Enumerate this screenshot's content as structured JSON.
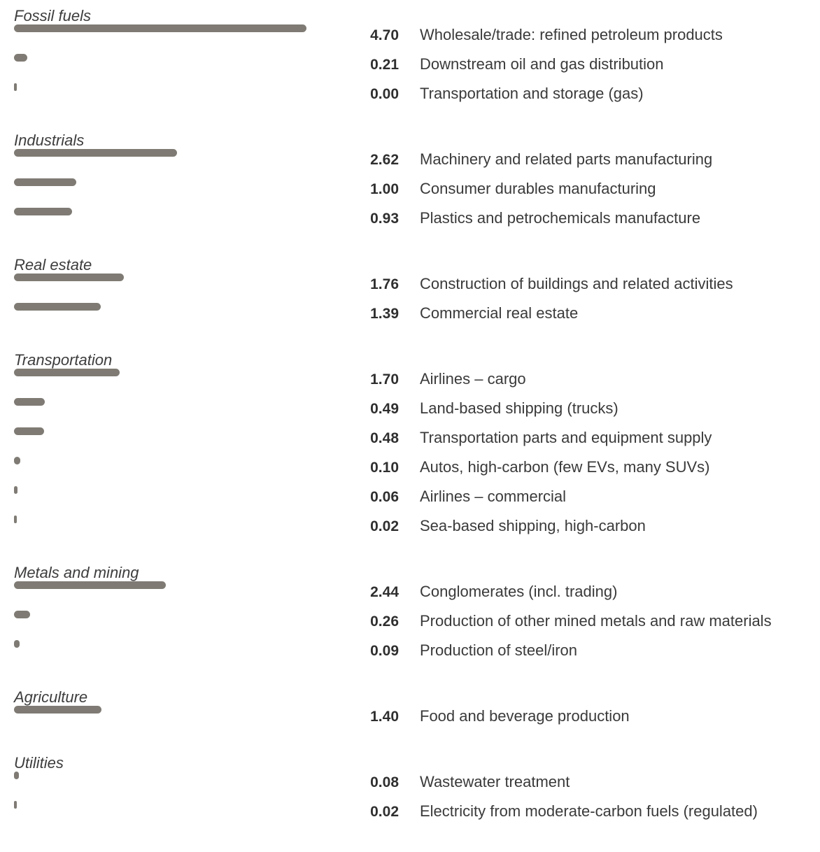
{
  "chart_data": {
    "type": "bar",
    "orientation": "horizontal",
    "bar_color": "#7f7b74",
    "grid": false,
    "groups": [
      {
        "name": "Fossil fuels",
        "items": [
          {
            "label": "Wholesale/trade: refined petroleum products",
            "value": 4.7,
            "value_label": "4.70"
          },
          {
            "label": "Downstream oil and gas distribution",
            "value": 0.21,
            "value_label": "0.21"
          },
          {
            "label": "Transportation and storage (gas)",
            "value": 0.0,
            "value_label": "0.00"
          }
        ]
      },
      {
        "name": "Industrials",
        "items": [
          {
            "label": "Machinery and related parts manufacturing",
            "value": 2.62,
            "value_label": "2.62"
          },
          {
            "label": "Consumer durables manufacturing",
            "value": 1.0,
            "value_label": "1.00"
          },
          {
            "label": "Plastics and petrochemicals manufacture",
            "value": 0.93,
            "value_label": "0.93"
          }
        ]
      },
      {
        "name": "Real estate",
        "items": [
          {
            "label": "Construction of buildings and related activities",
            "value": 1.76,
            "value_label": "1.76"
          },
          {
            "label": "Commercial real estate",
            "value": 1.39,
            "value_label": "1.39"
          }
        ]
      },
      {
        "name": "Transportation",
        "items": [
          {
            "label": "Airlines – cargo",
            "value": 1.7,
            "value_label": "1.70"
          },
          {
            "label": "Land-based shipping (trucks)",
            "value": 0.49,
            "value_label": "0.49"
          },
          {
            "label": "Transportation parts and equipment supply",
            "value": 0.48,
            "value_label": "0.48"
          },
          {
            "label": "Autos, high-carbon (few EVs, many SUVs)",
            "value": 0.1,
            "value_label": "0.10"
          },
          {
            "label": "Airlines – commercial",
            "value": 0.06,
            "value_label": "0.06"
          },
          {
            "label": "Sea-based shipping, high-carbon",
            "value": 0.02,
            "value_label": "0.02"
          }
        ]
      },
      {
        "name": "Metals and mining",
        "items": [
          {
            "label": "Conglomerates (incl. trading)",
            "value": 2.44,
            "value_label": "2.44"
          },
          {
            "label": "Production of other mined metals and raw materials",
            "value": 0.26,
            "value_label": "0.26"
          },
          {
            "label": "Production of steel/iron",
            "value": 0.09,
            "value_label": "0.09"
          }
        ]
      },
      {
        "name": "Agriculture",
        "items": [
          {
            "label": "Food and beverage production",
            "value": 1.4,
            "value_label": "1.40"
          }
        ]
      },
      {
        "name": "Utilities",
        "items": [
          {
            "label": "Wastewater treatment",
            "value": 0.08,
            "value_label": "0.08"
          },
          {
            "label": "Electricity from moderate-carbon fuels (regulated)",
            "value": 0.02,
            "value_label": "0.02"
          }
        ]
      }
    ]
  }
}
